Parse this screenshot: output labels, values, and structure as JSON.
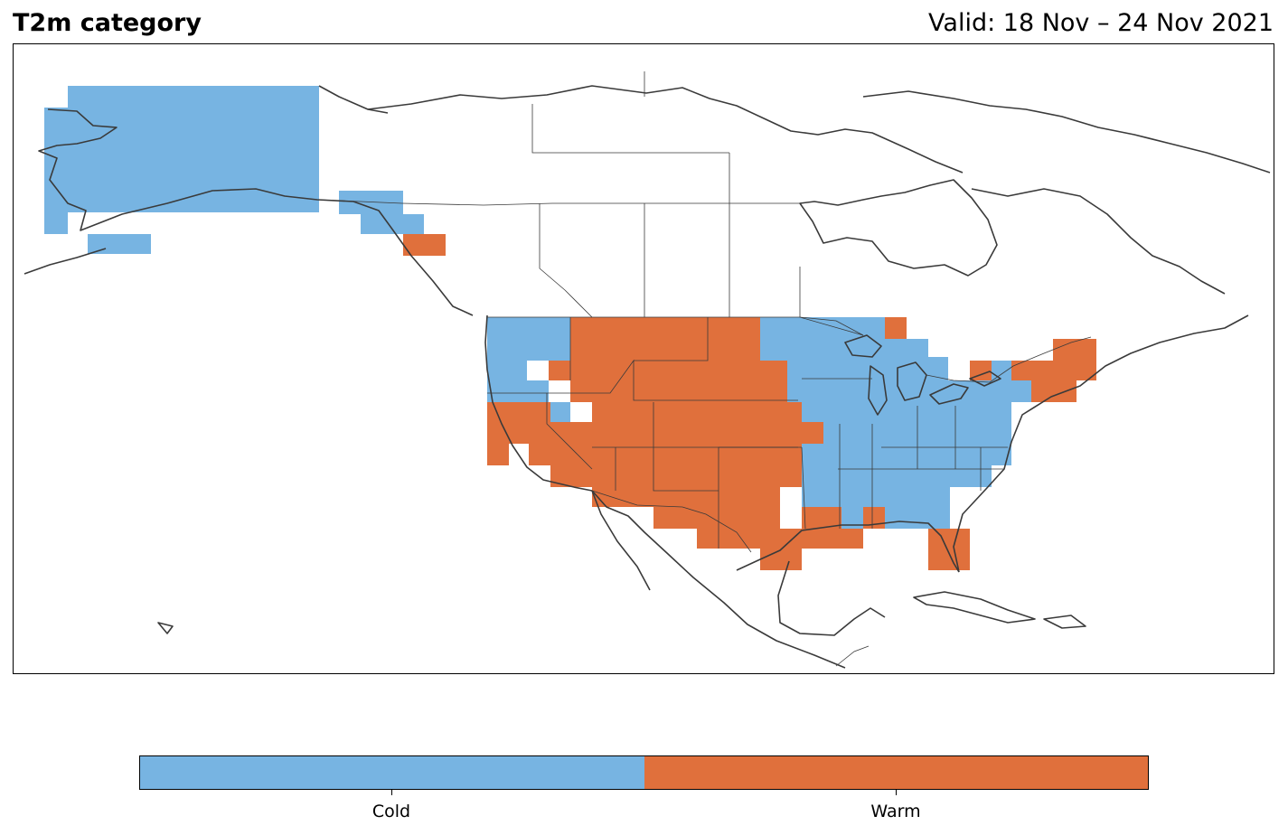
{
  "header": {
    "title": "T2m category",
    "valid": "Valid: 18 Nov – 24 Nov 2021"
  },
  "legend": {
    "categories": [
      {
        "label": "Cold",
        "color": "#77b4e2"
      },
      {
        "label": "Warm",
        "color": "#e0703c"
      }
    ]
  },
  "colors": {
    "cold": "#77b4e2",
    "warm": "#e0703c",
    "coastline": "#3a3a3a",
    "border": "#3a3a3a"
  },
  "map_data": {
    "type": "categorical-grid",
    "variable": "T2m category",
    "regions": [
      {
        "name": "Alaska",
        "category": "Cold"
      },
      {
        "name": "Alaska panhandle",
        "category": "Cold"
      },
      {
        "name": "coastal British Columbia",
        "category": "Warm"
      },
      {
        "name": "Pacific Northwest",
        "category": "Cold"
      },
      {
        "name": "Northern Rockies and High Plains",
        "category": "Warm"
      },
      {
        "name": "Southwest, California and Southern Plains",
        "category": "Warm"
      },
      {
        "name": "Upper Midwest and Great Lakes",
        "category": "Cold"
      },
      {
        "name": "Ohio Valley and Southeast",
        "category": "Cold"
      },
      {
        "name": "Gulf Coast",
        "category": "Warm"
      },
      {
        "name": "Florida peninsula",
        "category": "Warm"
      },
      {
        "name": "New England",
        "category": "Warm"
      }
    ]
  }
}
